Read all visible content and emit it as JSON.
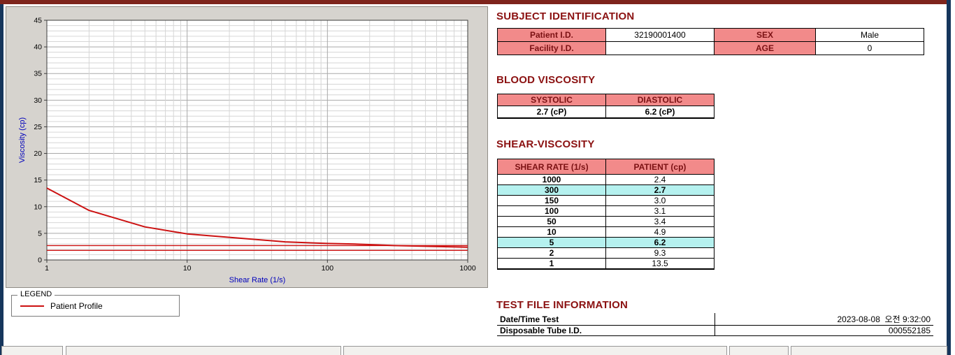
{
  "colors": {
    "accent_maroon": "#8b1111",
    "table_header_pink": "#f28a8a",
    "highlight_cyan": "#b5f1ef",
    "chart_line_red": "#cc1111",
    "axis_label_blue": "#0000bb",
    "panel_gray": "#d6d3ce",
    "top_bar_maroon": "#7e241c",
    "window_edge_navy": "#16365c"
  },
  "legend": {
    "title": "LEGEND",
    "series": "Patient Profile"
  },
  "sections": {
    "subject": {
      "title": "SUBJECT IDENTIFICATION",
      "rows": [
        {
          "h1": "Patient I.D.",
          "v1": "32190001400",
          "h2": "SEX",
          "v2": "Male"
        },
        {
          "h1": "Facility I.D.",
          "v1": "",
          "h2": "AGE",
          "v2": "0"
        }
      ]
    },
    "blood": {
      "title": "BLOOD VISCOSITY",
      "headers": [
        "SYSTOLIC",
        "DIASTOLIC"
      ],
      "values": [
        "2.7 (cP)",
        "6.2 (cP)"
      ]
    },
    "shear": {
      "title": "SHEAR-VISCOSITY",
      "headers": [
        "SHEAR RATE (1/s)",
        "PATIENT (cp)"
      ],
      "rows": [
        {
          "rate": "1000",
          "value": "2.4",
          "highlight": false
        },
        {
          "rate": "300",
          "value": "2.7",
          "highlight": true
        },
        {
          "rate": "150",
          "value": "3.0",
          "highlight": false
        },
        {
          "rate": "100",
          "value": "3.1",
          "highlight": false
        },
        {
          "rate": "50",
          "value": "3.4",
          "highlight": false
        },
        {
          "rate": "10",
          "value": "4.9",
          "highlight": false
        },
        {
          "rate": "5",
          "value": "6.2",
          "highlight": true
        },
        {
          "rate": "2",
          "value": "9.3",
          "highlight": false
        },
        {
          "rate": "1",
          "value": "13.5",
          "highlight": false
        }
      ]
    },
    "test": {
      "title": "TEST FILE INFORMATION",
      "rows": [
        {
          "label": "Date/Time Test",
          "value": "2023-08-08  오전 9:32:00"
        },
        {
          "label": "Disposable Tube I.D.",
          "value": "000552185"
        }
      ]
    }
  },
  "chart_data": {
    "type": "line",
    "title": "",
    "xlabel": "Shear Rate (1/s)",
    "ylabel": "Viscosity (cp)",
    "x_scale": "log",
    "xlim": [
      1,
      1000
    ],
    "ylim": [
      0,
      45
    ],
    "x_major_ticks": [
      1,
      10,
      100,
      1000
    ],
    "y_major_ticks": [
      0,
      5,
      10,
      15,
      20,
      25,
      30,
      35,
      40,
      45
    ],
    "grid": true,
    "legend_position": "below-left",
    "x": [
      1,
      2,
      5,
      10,
      50,
      100,
      150,
      300,
      1000
    ],
    "series": [
      {
        "name": "Patient Profile",
        "values": [
          13.5,
          9.3,
          6.2,
          4.9,
          3.4,
          3.1,
          3.0,
          2.7,
          2.4
        ]
      }
    ],
    "reference_lines": [
      2.7,
      1.8
    ],
    "line_color": "#cc1111",
    "axis_label_color": "#0000bb"
  }
}
